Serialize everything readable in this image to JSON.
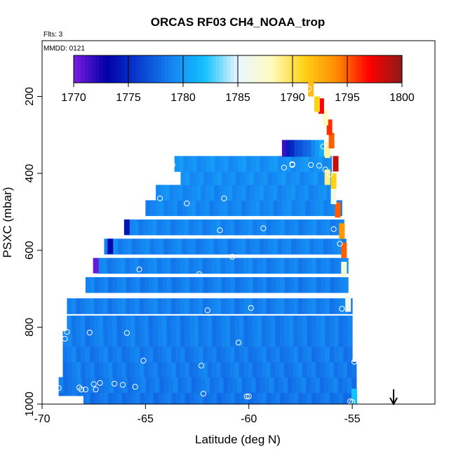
{
  "chart_data": {
    "type": "heatmap",
    "title": "ORCAS RF03 CH4_NOAA_trop",
    "flights_note": "Flts: 3",
    "date_note": "MMDD: 0121",
    "xlabel": "Latitude (deg N)",
    "ylabel": "PSXC (mbar)",
    "xlim": [
      -70,
      -51
    ],
    "ylim": [
      1000,
      55
    ],
    "x_ticks": [
      -70,
      -65,
      -60,
      -55
    ],
    "x_tick_labels": [
      "-70",
      "-65",
      "-60",
      "-55"
    ],
    "y_ticks": [
      200,
      400,
      600,
      800,
      1000
    ],
    "y_tick_labels": [
      "200",
      "400",
      "600",
      "800",
      "1000"
    ],
    "colorbar": {
      "min": 1770,
      "max": 1800,
      "ticks": [
        1770,
        1775,
        1780,
        1785,
        1790,
        1795,
        1800
      ],
      "tick_labels": [
        "1770",
        "1775",
        "1780",
        "1785",
        "1790",
        "1795",
        "1800"
      ],
      "colors": [
        "#7a1ee0",
        "#0000a8",
        "#0a3ecf",
        "#1585f2",
        "#14c2ff",
        "#e8f6ff",
        "#fffcc0",
        "#ffd21a",
        "#ff8c00",
        "#ff0000",
        "#8c1a1a"
      ]
    },
    "rows": [
      {
        "p": 980,
        "x0": -69.2,
        "x1": -55.0,
        "v": 1778.3
      },
      {
        "p": 950,
        "x0": -69.2,
        "x1": -54.8,
        "v": 1778.5
      },
      {
        "p": 910,
        "x0": -69.0,
        "x1": -54.8,
        "v": 1778.6
      },
      {
        "p": 870,
        "x0": -69.0,
        "x1": -55.0,
        "v": 1778.6
      },
      {
        "p": 830,
        "x0": -69.0,
        "x1": -55.0,
        "v": 1778.7
      },
      {
        "p": 790,
        "x0": -68.8,
        "x1": -55.0,
        "v": 1778.7
      },
      {
        "p": 745,
        "x0": -68.8,
        "x1": -55.0,
        "v": 1778.8
      },
      {
        "p": 690,
        "x0": -67.9,
        "x1": -55.2,
        "v": 1778.7
      },
      {
        "p": 640,
        "x0": -67.3,
        "x1": -55.2,
        "v": 1778.9
      },
      {
        "p": 590,
        "x0": -67.0,
        "x1": -55.3,
        "v": 1778.9
      },
      {
        "p": 540,
        "x0": -66.0,
        "x1": -55.4,
        "v": 1779.0
      },
      {
        "p": 490,
        "x0": -65.0,
        "x1": -55.5,
        "v": 1779.1
      },
      {
        "p": 450,
        "x0": -64.5,
        "x1": -55.8,
        "v": 1779.3
      },
      {
        "p": 410,
        "x0": -63.3,
        "x1": -56.0,
        "v": 1779.4
      },
      {
        "p": 375,
        "x0": -63.6,
        "x1": -56.0,
        "v": 1779.6
      }
    ],
    "special_cells": [
      {
        "x": -67.4,
        "p": 640,
        "v": 1770.5
      },
      {
        "x": -66.7,
        "p": 590,
        "v": 1773.5
      },
      {
        "x": -65.9,
        "p": 540,
        "v": 1774.0
      },
      {
        "x": -54.9,
        "p": 980,
        "v": 1782.0
      },
      {
        "x": -55.2,
        "p": 740,
        "v": 1786.0
      },
      {
        "x": -55.4,
        "p": 650,
        "v": 1787.0
      },
      {
        "x": -55.4,
        "p": 600,
        "v": 1795.0
      },
      {
        "x": -55.5,
        "p": 550,
        "v": 1793.5
      },
      {
        "x": -55.7,
        "p": 495,
        "v": 1795.0
      },
      {
        "x": -55.9,
        "p": 460,
        "v": 1786.0
      },
      {
        "x": -55.9,
        "p": 420,
        "v": 1791.0
      },
      {
        "x": -56.2,
        "p": 410,
        "v": 1789.0
      },
      {
        "x": -56.2,
        "p": 340,
        "v": 1788.5
      },
      {
        "x": -55.8,
        "p": 375,
        "v": 1798.5
      },
      {
        "x": -56.0,
        "p": 315,
        "v": 1795.0
      },
      {
        "x": -56.1,
        "p": 280,
        "v": 1796.0
      },
      {
        "x": -56.3,
        "p": 255,
        "v": 1788.0
      },
      {
        "x": -56.5,
        "p": 225,
        "v": 1797.0
      },
      {
        "x": -56.7,
        "p": 220,
        "v": 1791.0
      },
      {
        "x": -57.0,
        "p": 180,
        "v": 1792.0
      }
    ],
    "top_strip": {
      "p": 335,
      "x": [
        -58.4,
        -58.2,
        -58.0,
        -57.8,
        -57.6,
        -57.4,
        -57.2,
        -57.0,
        -56.8,
        -56.6
      ],
      "v": [
        1771.5,
        1774.5,
        1775.0,
        1776.5,
        1776.8,
        1777.5,
        1778.0,
        1779.0,
        1780.0,
        1781.0
      ]
    },
    "markers": [
      {
        "x": -63.7,
        "p": 378
      },
      {
        "x": -58.3,
        "p": 385
      },
      {
        "x": -57.9,
        "p": 378
      },
      {
        "x": -57.9,
        "p": 376
      },
      {
        "x": -57.0,
        "p": 378
      },
      {
        "x": -56.6,
        "p": 380
      },
      {
        "x": -56.3,
        "p": 390
      },
      {
        "x": -56.4,
        "p": 330
      },
      {
        "x": -57.1,
        "p": 180
      },
      {
        "x": -56.1,
        "p": 403
      },
      {
        "x": -64.3,
        "p": 465
      },
      {
        "x": -63.0,
        "p": 478
      },
      {
        "x": -61.2,
        "p": 465
      },
      {
        "x": -61.4,
        "p": 548
      },
      {
        "x": -59.3,
        "p": 543
      },
      {
        "x": -55.9,
        "p": 545
      },
      {
        "x": -55.6,
        "p": 583
      },
      {
        "x": -60.8,
        "p": 617
      },
      {
        "x": -65.3,
        "p": 650
      },
      {
        "x": -62.4,
        "p": 662
      },
      {
        "x": -62.0,
        "p": 756
      },
      {
        "x": -59.9,
        "p": 750
      },
      {
        "x": -55.5,
        "p": 752
      },
      {
        "x": -69.1,
        "p": 737
      },
      {
        "x": -68.8,
        "p": 812
      },
      {
        "x": -68.9,
        "p": 830
      },
      {
        "x": -67.7,
        "p": 814
      },
      {
        "x": -65.9,
        "p": 815
      },
      {
        "x": -60.5,
        "p": 840
      },
      {
        "x": -65.1,
        "p": 887
      },
      {
        "x": -62.3,
        "p": 900
      },
      {
        "x": -54.9,
        "p": 890
      },
      {
        "x": -69.4,
        "p": 945
      },
      {
        "x": -69.4,
        "p": 957
      },
      {
        "x": -69.2,
        "p": 958
      },
      {
        "x": -68.2,
        "p": 957
      },
      {
        "x": -68.1,
        "p": 962
      },
      {
        "x": -67.9,
        "p": 962
      },
      {
        "x": -67.5,
        "p": 948
      },
      {
        "x": -67.4,
        "p": 962
      },
      {
        "x": -67.2,
        "p": 945
      },
      {
        "x": -66.5,
        "p": 947
      },
      {
        "x": -66.1,
        "p": 950
      },
      {
        "x": -65.5,
        "p": 955
      },
      {
        "x": -62.2,
        "p": 973
      },
      {
        "x": -60.1,
        "p": 980
      },
      {
        "x": -60.0,
        "p": 980
      },
      {
        "x": -55.1,
        "p": 993
      },
      {
        "x": -55.0,
        "p": 995
      }
    ],
    "arrow_lat": -53.0
  }
}
